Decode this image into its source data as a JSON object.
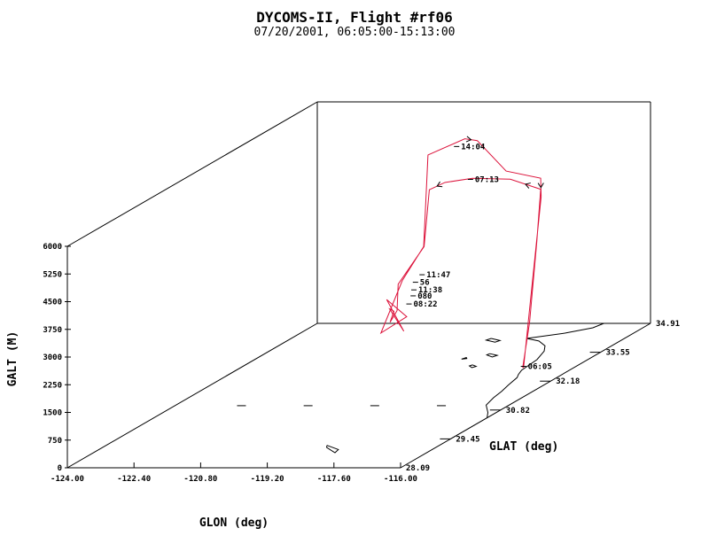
{
  "title": "DYCOMS-II, Flight #rf06",
  "subtitle": "07/20/2001, 06:05:00-15:13:00",
  "chart_data": {
    "type": "line",
    "projection": "3d",
    "title": "DYCOMS-II, Flight #rf06",
    "subtitle": "07/20/2001, 06:05:00-15:13:00",
    "xlabel": "GLON (deg)",
    "ylabel": "GLAT (deg)",
    "zlabel": "GALT (M)",
    "xlim": [
      -124.0,
      -116.0
    ],
    "ylim": [
      28.09,
      34.91
    ],
    "zlim": [
      0,
      6000
    ],
    "x_ticks": [
      "-124.00",
      "-122.40",
      "-120.80",
      "-119.20",
      "-117.60",
      "-116.00"
    ],
    "y_ticks": [
      "28.09",
      "29.45",
      "30.82",
      "32.18",
      "33.55",
      "34.91"
    ],
    "z_ticks": [
      "0",
      "750",
      "1500",
      "2250",
      "3000",
      "3750",
      "4500",
      "5250",
      "6000"
    ],
    "series": [
      {
        "color": "#dc143c",
        "points": [
          [
            -117.15,
            32.73,
            50
          ],
          [
            -117.1,
            32.86,
            1200
          ],
          [
            -117.05,
            33.0,
            3300
          ],
          [
            -117.0,
            33.05,
            4700
          ],
          [
            -117.95,
            33.3,
            4830
          ],
          [
            -119.02,
            33.48,
            4750
          ],
          [
            -119.52,
            33.3,
            4740
          ],
          [
            -119.7,
            33.08,
            4670
          ],
          [
            -119.72,
            32.96,
            3200
          ],
          [
            -119.85,
            32.4,
            2500
          ],
          [
            -119.7,
            32.2,
            1900
          ],
          [
            -120.0,
            32.35,
            1500
          ],
          [
            -119.6,
            32.0,
            2000
          ],
          [
            -120.1,
            32.45,
            1800
          ],
          [
            -119.45,
            32.1,
            1400
          ],
          [
            -119.95,
            32.2,
            2200
          ],
          [
            -119.6,
            32.35,
            1650
          ],
          [
            -120.0,
            32.1,
            1350
          ],
          [
            -119.75,
            32.4,
            2600
          ],
          [
            -119.73,
            32.96,
            3200
          ],
          [
            -119.75,
            33.1,
            5600
          ],
          [
            -119.2,
            33.48,
            5820
          ],
          [
            -118.9,
            33.48,
            5770
          ],
          [
            -118.05,
            33.3,
            5050
          ],
          [
            -117.0,
            33.05,
            5000
          ],
          [
            -116.98,
            33.04,
            4500
          ],
          [
            -117.13,
            32.73,
            50
          ]
        ]
      }
    ],
    "annotations": [
      {
        "label": "14:04",
        "lon": -119.35,
        "lat": 33.5,
        "alt": 5600
      },
      {
        "label": "07:13",
        "lon": -119.0,
        "lat": 33.48,
        "alt": 4720
      },
      {
        "label": "11:47",
        "lon": -119.3,
        "lat": 32.5,
        "alt": 2700
      },
      {
        "label": "56",
        "lon": -119.3,
        "lat": 32.32,
        "alt": 2600
      },
      {
        "label": "11:38",
        "lon": -119.25,
        "lat": 32.22,
        "alt": 2450
      },
      {
        "label": "080",
        "lon": -119.25,
        "lat": 32.2,
        "alt": 2300
      },
      {
        "label": "08:22",
        "lon": -119.35,
        "lat": 32.2,
        "alt": 2080
      },
      {
        "label": "06:05",
        "lon": -117.2,
        "lat": 32.88,
        "alt": 0
      }
    ],
    "grid": false
  }
}
